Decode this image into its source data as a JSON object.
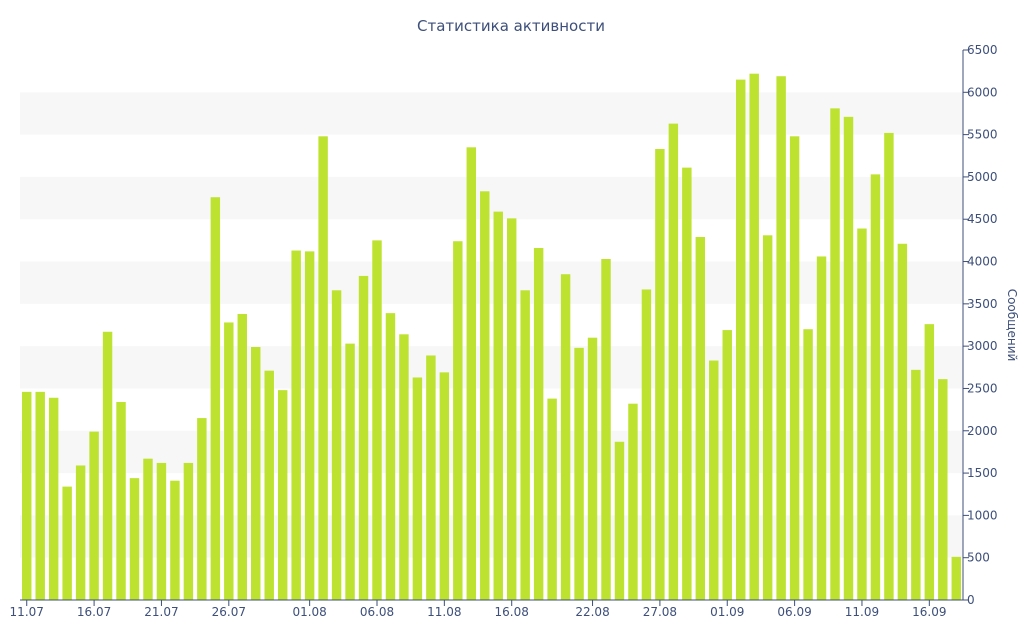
{
  "chart_data": {
    "type": "bar",
    "title": "Статистика активности",
    "xlabel": "",
    "ylabel": "Сообщений",
    "ylim": [
      0,
      6500
    ],
    "y_ticks": [
      0,
      500,
      1000,
      1500,
      2000,
      2500,
      3000,
      3500,
      4000,
      4500,
      5000,
      5500,
      6000,
      6500
    ],
    "y_axis_side": "right",
    "grid": "alternating horizontal bands",
    "bar_color": "#bde22f",
    "band_color": "#f7f7f7",
    "text_color": "#3d4f7a",
    "x_tick_labels": [
      {
        "index": 0,
        "label": "11.07"
      },
      {
        "index": 5,
        "label": "16.07"
      },
      {
        "index": 10,
        "label": "21.07"
      },
      {
        "index": 15,
        "label": "26.07"
      },
      {
        "index": 21,
        "label": "01.08"
      },
      {
        "index": 26,
        "label": "06.08"
      },
      {
        "index": 31,
        "label": "11.08"
      },
      {
        "index": 36,
        "label": "16.08"
      },
      {
        "index": 42,
        "label": "22.08"
      },
      {
        "index": 47,
        "label": "27.08"
      },
      {
        "index": 52,
        "label": "01.09"
      },
      {
        "index": 57,
        "label": "06.09"
      },
      {
        "index": 62,
        "label": "11.09"
      },
      {
        "index": 67,
        "label": "16.09"
      }
    ],
    "values": [
      2460,
      2460,
      2390,
      1340,
      1590,
      1990,
      3170,
      2340,
      1440,
      1670,
      1620,
      1410,
      1620,
      2150,
      4760,
      3280,
      3380,
      2990,
      2710,
      2480,
      4130,
      4120,
      5480,
      3660,
      3030,
      3830,
      4250,
      3390,
      3140,
      2630,
      2890,
      2690,
      4240,
      5350,
      4830,
      4590,
      4510,
      3660,
      4160,
      2380,
      3850,
      2980,
      3100,
      4030,
      1870,
      2320,
      3670,
      5330,
      5630,
      5110,
      4290,
      2830,
      3190,
      6150,
      6220,
      4310,
      6190,
      5480,
      3200,
      4060,
      5810,
      5710,
      4390,
      5030,
      5520,
      4210,
      2720,
      3260,
      2610,
      510
    ]
  }
}
